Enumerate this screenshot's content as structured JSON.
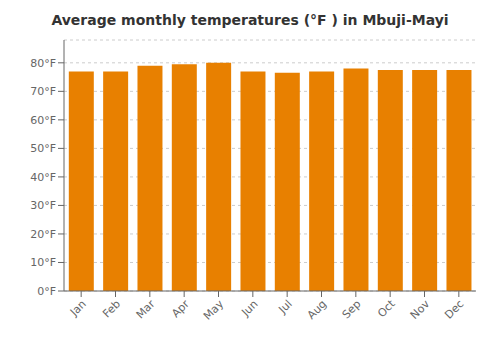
{
  "chart_data": {
    "type": "bar",
    "title": "Average monthly temperatures (°F ) in Mbuji-Mayi",
    "categories": [
      "Jan",
      "Feb",
      "Mar",
      "Apr",
      "May",
      "Jun",
      "Jul",
      "Aug",
      "Sep",
      "Oct",
      "Nov",
      "Dec"
    ],
    "values": [
      77.0,
      77.0,
      79.0,
      79.5,
      80.0,
      77.0,
      76.5,
      77.0,
      78.0,
      77.5,
      77.5,
      77.5
    ],
    "color": "#E88000",
    "ylim": [
      0,
      88
    ],
    "yticks": [
      {
        "value": 0,
        "label": "0°F"
      },
      {
        "value": 10,
        "label": "10°F"
      },
      {
        "value": 20,
        "label": "20°F"
      },
      {
        "value": 30,
        "label": "30°F"
      },
      {
        "value": 40,
        "label": "40°F"
      },
      {
        "value": 50,
        "label": "50°F"
      },
      {
        "value": 60,
        "label": "60°F"
      },
      {
        "value": 70,
        "label": "70°F"
      },
      {
        "value": 80,
        "label": "80°F"
      }
    ],
    "grid": true
  }
}
